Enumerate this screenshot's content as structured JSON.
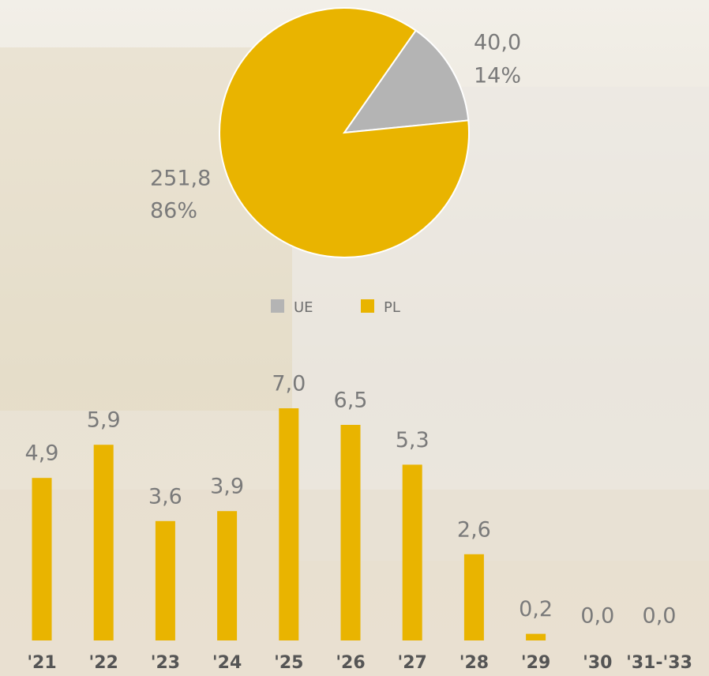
{
  "chart_data": [
    {
      "type": "pie",
      "categories": [
        "UE",
        "PL"
      ],
      "values": [
        40.0,
        251.8
      ],
      "value_labels": [
        "40,0",
        "251,8"
      ],
      "percentages": [
        14,
        86
      ],
      "percent_labels": [
        "14%",
        "86%"
      ],
      "colors": [
        "#b4b4b4",
        "#e9b400"
      ],
      "legend": "bottom"
    },
    {
      "type": "bar",
      "categories": [
        "'21",
        "'22",
        "'23",
        "'24",
        "'25",
        "'26",
        "'27",
        "'28",
        "'29",
        "'30",
        "'31-'33"
      ],
      "values": [
        4.9,
        5.9,
        3.6,
        3.9,
        7.0,
        6.5,
        5.3,
        2.6,
        0.2,
        0.0,
        0.0
      ],
      "value_labels": [
        "4,9",
        "5,9",
        "3,6",
        "3,9",
        "7,0",
        "6,5",
        "5,3",
        "2,6",
        "0,2",
        "0,0",
        "0,0"
      ],
      "color": "#e9b400"
    }
  ]
}
